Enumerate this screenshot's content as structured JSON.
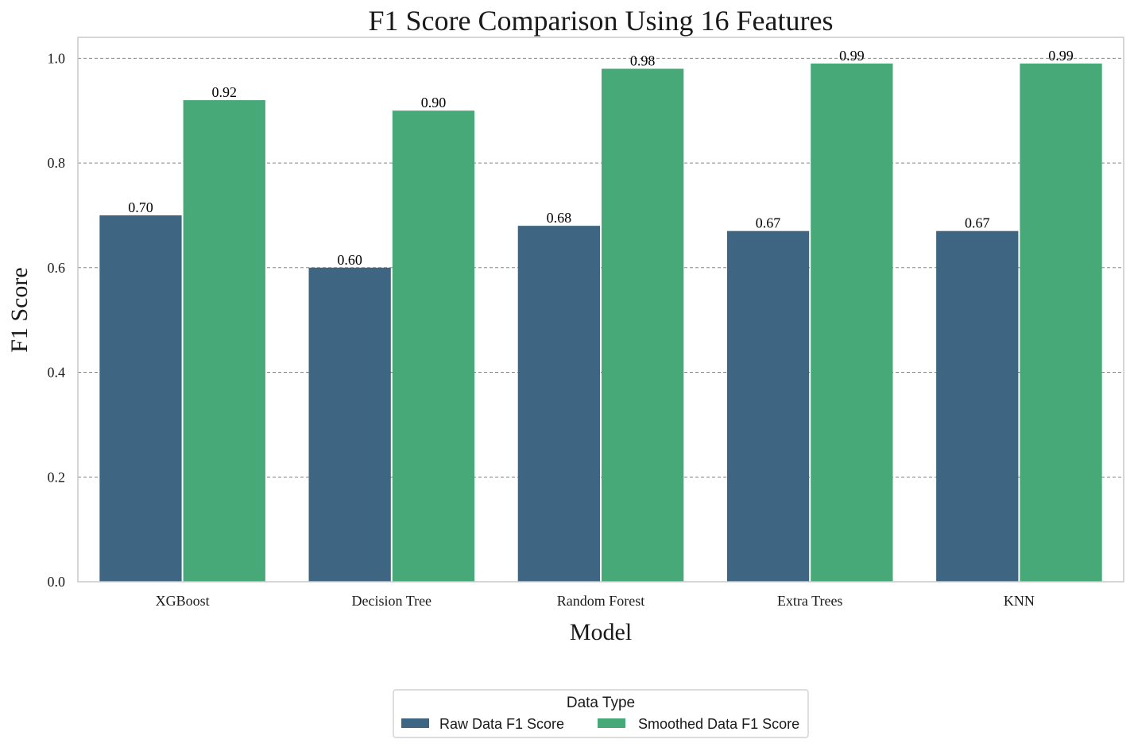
{
  "chart_data": {
    "type": "bar",
    "title": "F1 Score Comparison Using 16 Features",
    "xlabel": "Model",
    "ylabel": "F1 Score",
    "categories": [
      "XGBoost",
      "Decision Tree",
      "Random Forest",
      "Extra Trees",
      "KNN"
    ],
    "series": [
      {
        "name": "Raw Data F1 Score",
        "values": [
          0.7,
          0.6,
          0.68,
          0.67,
          0.67
        ],
        "color": "#3e6682"
      },
      {
        "name": "Smoothed Data F1 Score",
        "values": [
          0.92,
          0.9,
          0.98,
          0.99,
          0.99
        ],
        "color": "#47a878"
      }
    ],
    "data_labels": [
      [
        "0.70",
        "0.60",
        "0.68",
        "0.67",
        "0.67"
      ],
      [
        "0.92",
        "0.90",
        "0.98",
        "0.99",
        "0.99"
      ]
    ],
    "ylim": [
      0,
      1.04
    ],
    "yticks": [
      "0.0",
      "0.2",
      "0.4",
      "0.6",
      "0.8",
      "1.0"
    ],
    "grid": "horizontal-dashed",
    "legend": {
      "title": "Data Type",
      "placement": "bottom-center"
    },
    "colors": {
      "grid": "#888888",
      "axes_frame": "#c8c8c8"
    }
  }
}
